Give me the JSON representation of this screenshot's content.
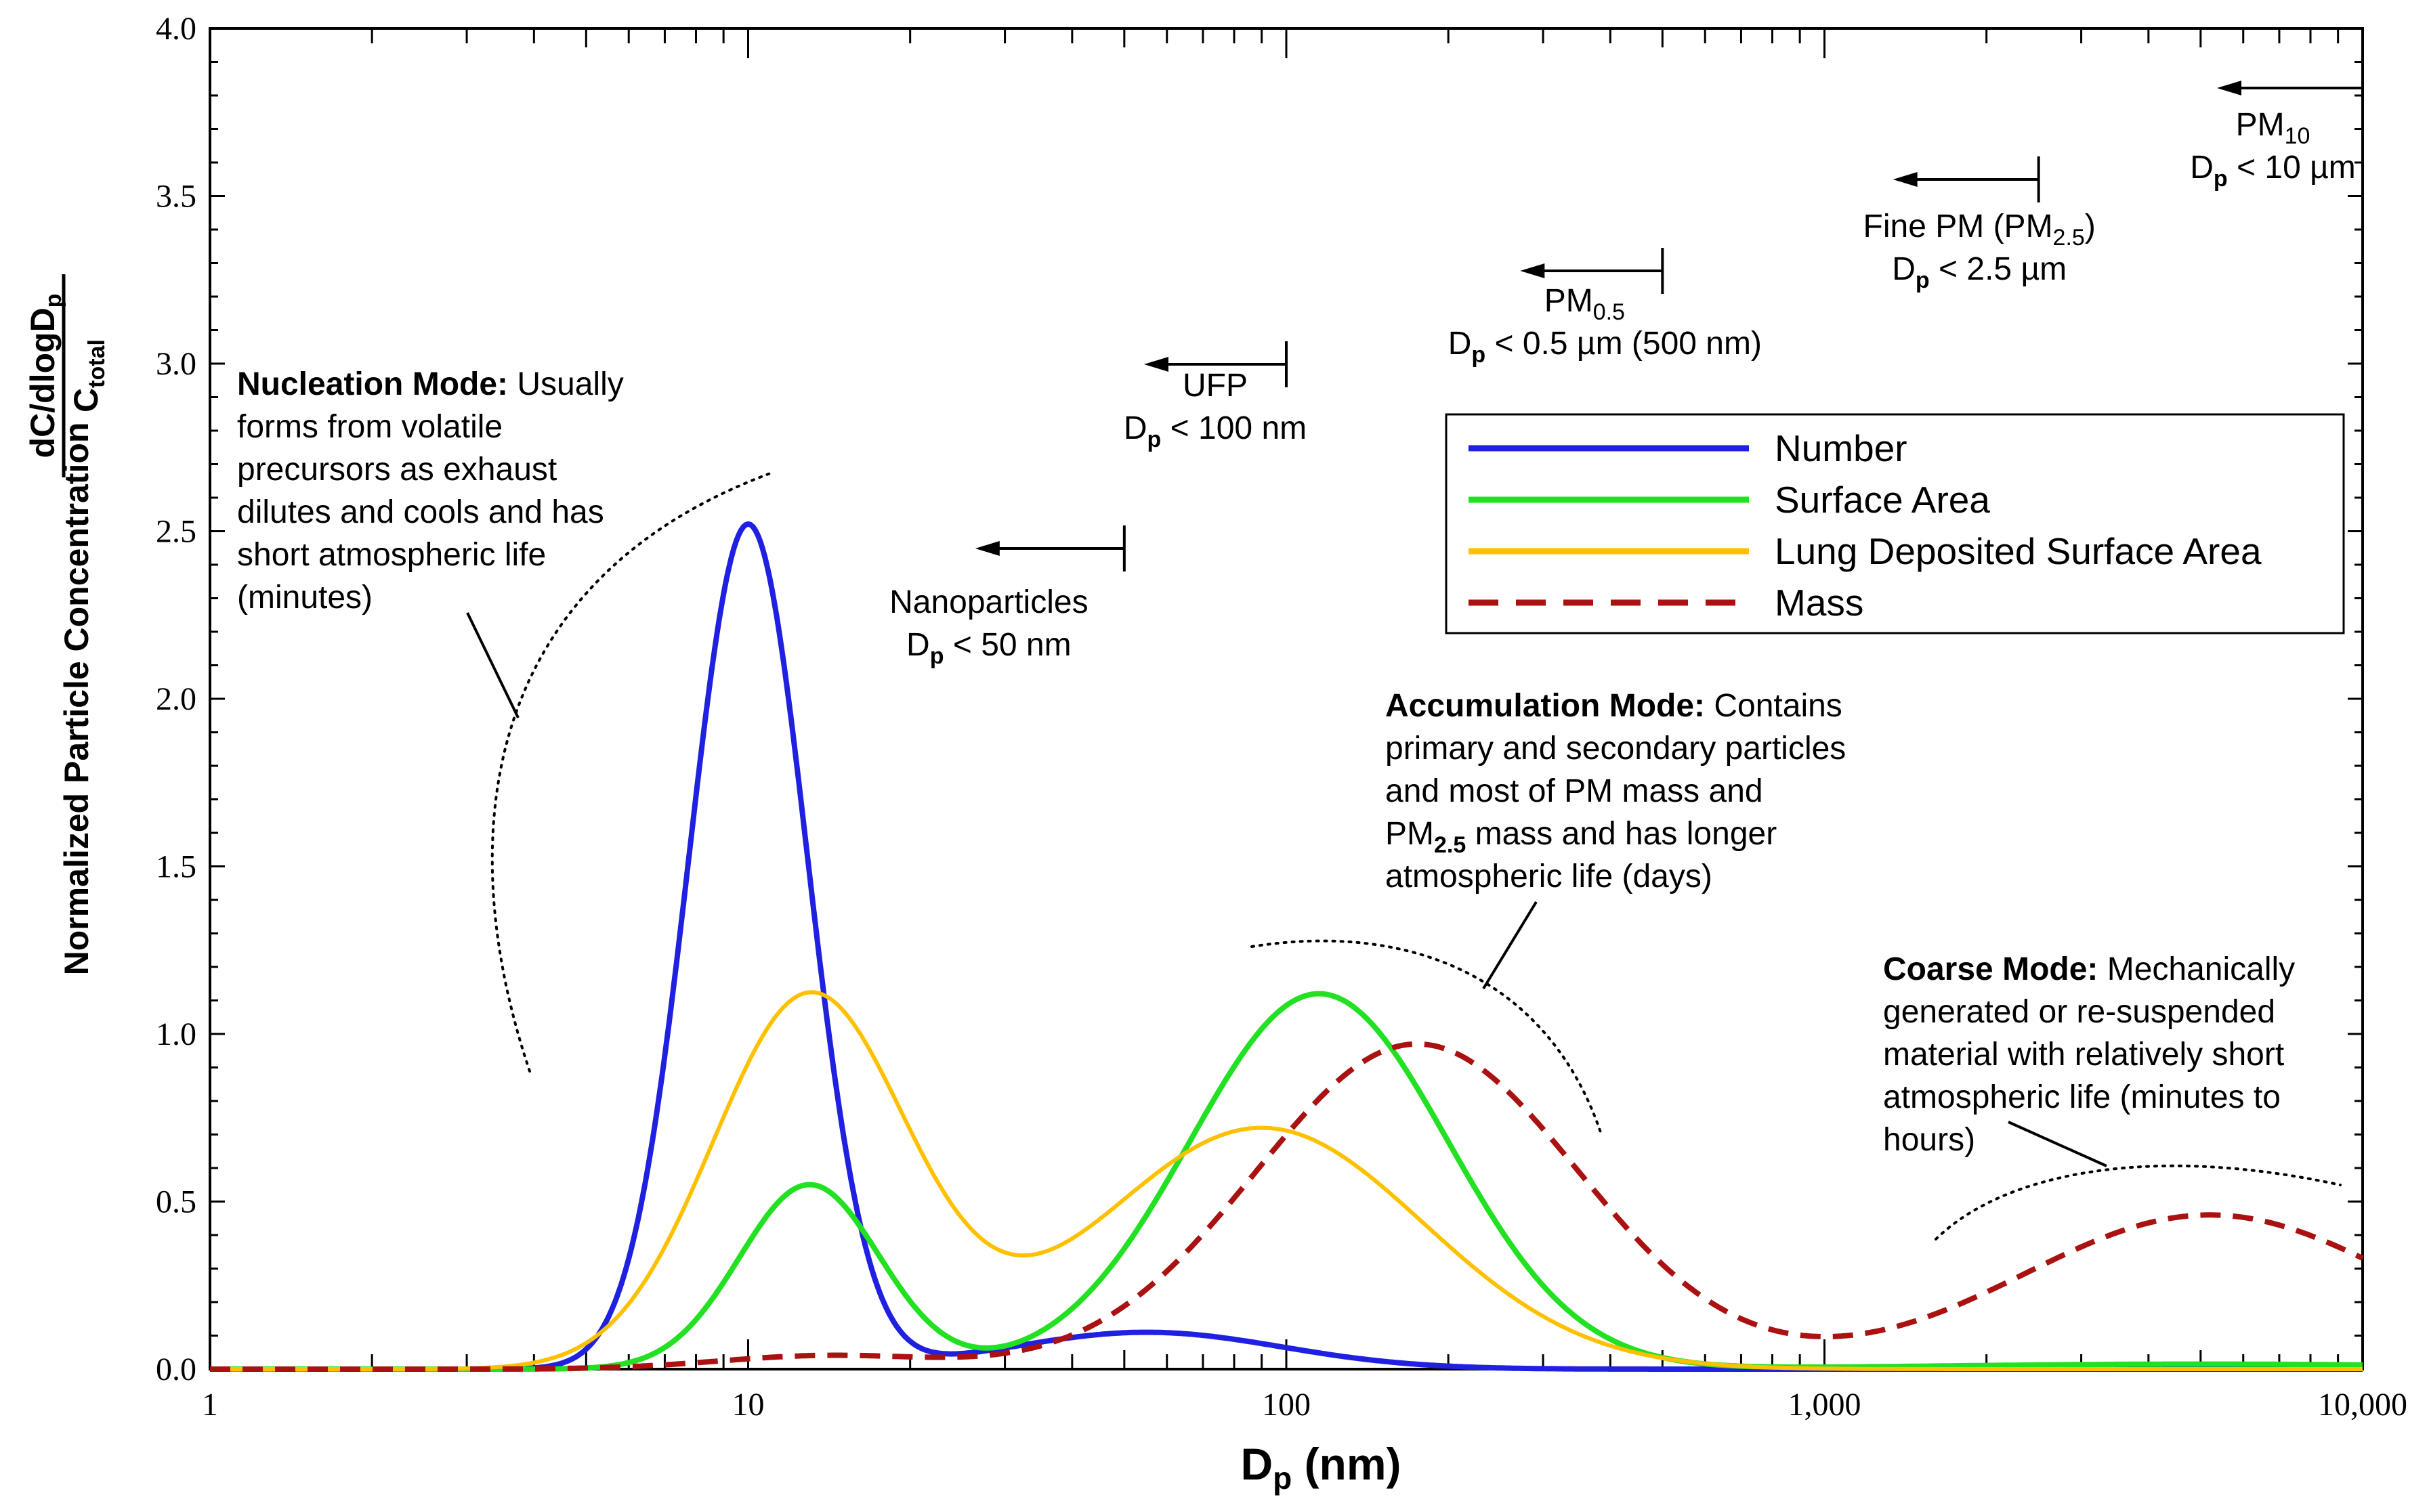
{
  "chart_data": {
    "type": "line",
    "x_scale": "log",
    "xlim": [
      1,
      10000
    ],
    "ylim": [
      0,
      4.0
    ],
    "xlabel": "D",
    "xlabel_sub": "p",
    "xlabel_unit": " (nm)",
    "ylabel_line": "Normalized Particle Concentration",
    "ylabel_num": "dC/dlogD",
    "ylabel_num_sub": "p",
    "ylabel_den": "C",
    "ylabel_den_sub": "total",
    "x_ticks": [
      {
        "value": 1,
        "label": "1"
      },
      {
        "value": 10,
        "label": "10"
      },
      {
        "value": 100,
        "label": "100"
      },
      {
        "value": 1000,
        "label": "1,000"
      },
      {
        "value": 10000,
        "label": "10,000"
      }
    ],
    "y_ticks": [
      {
        "value": 0,
        "label": "0.0"
      },
      {
        "value": 0.5,
        "label": "0.5"
      },
      {
        "value": 1.0,
        "label": "1.0"
      },
      {
        "value": 1.5,
        "label": "1.5"
      },
      {
        "value": 2.0,
        "label": "2.0"
      },
      {
        "value": 2.5,
        "label": "2.5"
      },
      {
        "value": 3.0,
        "label": "3.0"
      },
      {
        "value": 3.5,
        "label": "3.5"
      },
      {
        "value": 4.0,
        "label": "4.0"
      }
    ],
    "legend_position": "top-right",
    "series": [
      {
        "name": "Number",
        "color": "#2020e0",
        "dash": "solid",
        "modes": [
          {
            "peak": 2.52,
            "center": 10,
            "sigma": 0.11
          },
          {
            "peak": 0.11,
            "center": 55,
            "sigma": 0.25
          }
        ]
      },
      {
        "name": "Surface Area",
        "color": "#22e022",
        "dash": "solid",
        "modes": [
          {
            "peak": 0.55,
            "center": 13,
            "sigma": 0.13
          },
          {
            "peak": 1.12,
            "center": 115,
            "sigma": 0.24
          },
          {
            "peak": 0.015,
            "center": 5000,
            "sigma": 0.5
          }
        ]
      },
      {
        "name": "Lung Deposited Surface Area",
        "color": "#ffc000",
        "dash": "solid",
        "modes": [
          {
            "peak": 1.11,
            "center": 13,
            "sigma": 0.18
          },
          {
            "peak": 0.72,
            "center": 90,
            "sigma": 0.3
          }
        ]
      },
      {
        "name": "Mass",
        "color": "#aa1111",
        "dash": "dashed",
        "modes": [
          {
            "peak": 0.04,
            "center": 14,
            "sigma": 0.2
          },
          {
            "peak": 0.97,
            "center": 175,
            "sigma": 0.3
          },
          {
            "peak": 0.46,
            "center": 5200,
            "sigma": 0.35
          }
        ]
      }
    ],
    "size_markers": [
      {
        "name": "nanoparticles",
        "label": "Nanoparticles",
        "dp_text": " < 50 nm",
        "cutoff": 50
      },
      {
        "name": "ufp",
        "label": "UFP",
        "dp_text": " < 100 nm",
        "cutoff": 100
      },
      {
        "name": "pm05",
        "label": "PM",
        "label_sub": "0.5",
        "dp_text": " < 0.5 µm (500 nm)",
        "cutoff": 500
      },
      {
        "name": "fine-pm",
        "label": "Fine PM (PM",
        "label_sub": "2.5",
        "label_tail": ")",
        "dp_text": " < 2.5 µm",
        "cutoff": 2500
      },
      {
        "name": "pm10",
        "label": "PM",
        "label_sub": "10",
        "dp_text": " < 10 µm",
        "cutoff": 10000
      }
    ],
    "annotations": {
      "nucleation": {
        "bold": "Nucleation Mode:",
        "lines": [
          " Usually",
          "forms from volatile",
          "precursors as exhaust",
          "dilutes and cools and has",
          "short atmospheric life",
          "(minutes)"
        ]
      },
      "accumulation": {
        "bold": "Accumulation Mode:",
        "lines": [
          " Contains",
          "primary and secondary particles",
          "and most of PM mass and",
          " mass and has longer",
          "atmospheric life (days)"
        ],
        "pm_label": "PM",
        "pm_sub": "2.5"
      },
      "coarse": {
        "bold": "Coarse Mode:",
        "lines": [
          " Mechanically",
          "generated or re-suspended",
          "material with relatively short",
          "atmospheric life (minutes to",
          "hours)"
        ]
      }
    },
    "dp_symbol": "D",
    "dp_sub": "p"
  }
}
